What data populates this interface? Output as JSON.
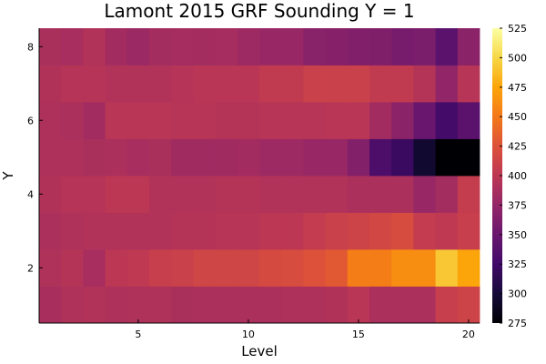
{
  "chart_data": {
    "type": "heatmap",
    "title": "Lamont 2015 GRF Sounding Y = 1",
    "xlabel": "Level",
    "ylabel": "Y",
    "x": [
      1,
      2,
      3,
      4,
      5,
      6,
      7,
      8,
      9,
      10,
      11,
      12,
      13,
      14,
      15,
      16,
      17,
      18,
      19,
      20
    ],
    "y": [
      1,
      2,
      3,
      4,
      5,
      6,
      7,
      8
    ],
    "xlim": [
      0.5,
      20.5
    ],
    "ylim": [
      0.5,
      8.5
    ],
    "xticks": [
      5,
      10,
      15,
      20
    ],
    "yticks": [
      2,
      4,
      6,
      8
    ],
    "colorbar": {
      "clim": [
        275,
        525
      ],
      "ticks": [
        275,
        300,
        325,
        350,
        375,
        400,
        425,
        450,
        475,
        500,
        525
      ],
      "colormap": "inferno"
    },
    "z": [
      [
        388,
        392,
        394,
        391,
        392,
        392,
        389,
        390,
        390,
        390,
        390,
        391,
        391,
        393,
        398,
        390,
        390,
        390,
        408,
        412
      ],
      [
        392,
        395,
        387,
        400,
        402,
        408,
        410,
        414,
        414,
        414,
        418,
        420,
        425,
        430,
        453,
        453,
        462,
        462,
        492,
        475
      ],
      [
        390,
        392,
        394,
        394,
        394,
        394,
        395,
        395,
        397,
        397,
        400,
        400,
        405,
        410,
        412,
        415,
        420,
        405,
        402,
        408
      ],
      [
        393,
        396,
        396,
        400,
        400,
        394,
        394,
        394,
        395,
        395,
        394,
        394,
        394,
        394,
        390,
        390,
        390,
        378,
        385,
        406
      ],
      [
        391,
        391,
        389,
        390,
        387,
        389,
        383,
        383,
        383,
        384,
        381,
        381,
        378,
        378,
        365,
        332,
        320,
        296,
        275,
        275
      ],
      [
        391,
        390,
        384,
        398,
        398,
        398,
        397,
        397,
        395,
        395,
        397,
        397,
        397,
        398,
        398,
        384,
        370,
        349,
        326,
        340
      ],
      [
        393,
        396,
        396,
        394,
        394,
        394,
        396,
        398,
        398,
        398,
        404,
        404,
        410,
        410,
        410,
        404,
        404,
        395,
        374,
        397
      ],
      [
        389,
        387,
        394,
        384,
        379,
        385,
        386,
        385,
        386,
        381,
        378,
        378,
        368,
        367,
        364,
        363,
        358,
        360,
        340,
        370
      ]
    ]
  }
}
